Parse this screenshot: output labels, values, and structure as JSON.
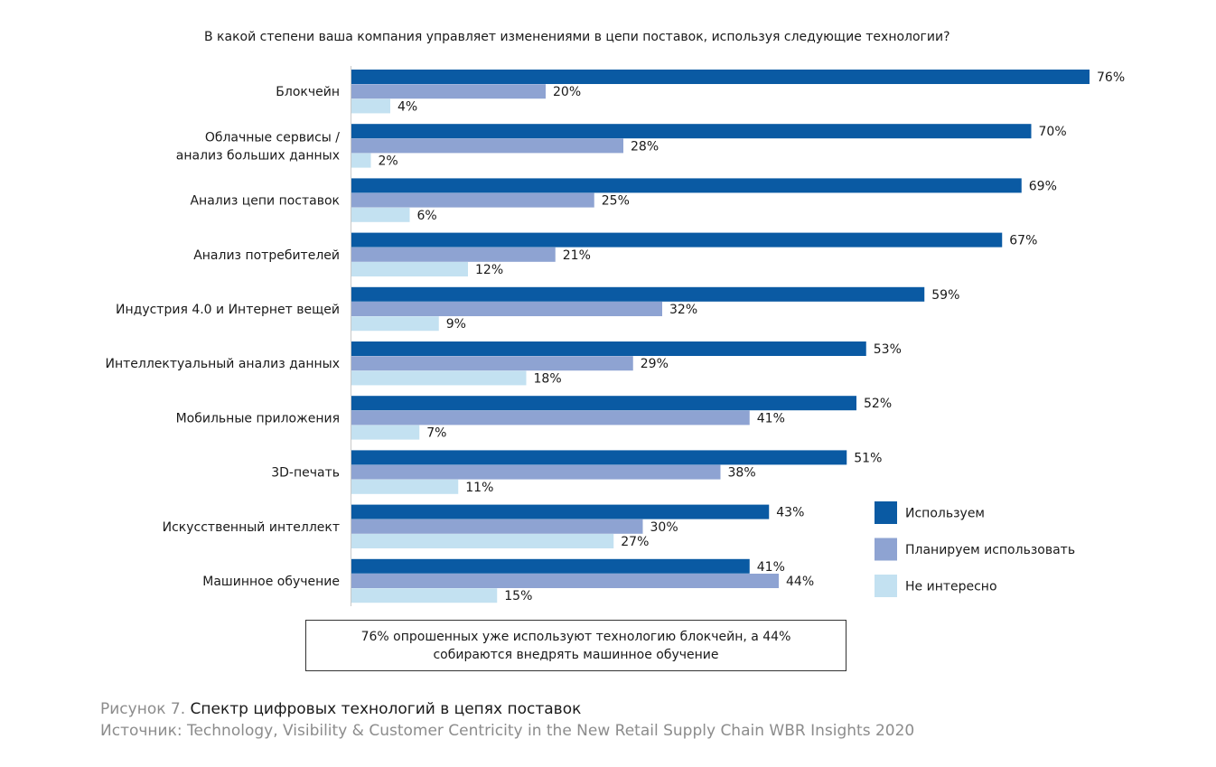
{
  "question": "В какой степени ваша компания управляет изменениями в цепи поставок, используя следующие технологии?",
  "colors": {
    "use": "#0a5aa3",
    "plan": "#8ea3d2",
    "not_interested": "#c3e1f1"
  },
  "chart_data": {
    "type": "bar",
    "orientation": "horizontal",
    "categories": [
      [
        "Блокчейн"
      ],
      [
        "Облачные сервисы /",
        "анализ больших данных"
      ],
      [
        "Анализ цепи поставок"
      ],
      [
        "Анализ потребителей"
      ],
      [
        "Индустрия 4.0 и Интернет вещей"
      ],
      [
        "Интеллектуальный анализ данных"
      ],
      [
        "Мобильные приложения"
      ],
      [
        "3D-печать"
      ],
      [
        "Искусственный интеллект"
      ],
      [
        "Машинное обучение"
      ]
    ],
    "series": [
      {
        "name": "Используем",
        "color": "#0a5aa3",
        "values": [
          76,
          70,
          69,
          67,
          59,
          53,
          52,
          51,
          43,
          41
        ]
      },
      {
        "name": "Планируем использовать",
        "color": "#8ea3d2",
        "values": [
          20,
          28,
          25,
          21,
          32,
          29,
          41,
          38,
          30,
          44
        ]
      },
      {
        "name": "Не интересно",
        "color": "#c3e1f1",
        "values": [
          4,
          2,
          6,
          12,
          9,
          18,
          7,
          11,
          27,
          15
        ]
      }
    ],
    "value_suffix": "%",
    "xlim": [
      0,
      100
    ],
    "grid": false,
    "legend_position": "bottom-right"
  },
  "callout": "76% опрошенных уже используют технологию блокчейн, а 44% собираются внедрять машинное обучение",
  "caption": {
    "prefix": "Рисунок 7.",
    "title": "Спектр цифровых технологий в цепях поставок"
  },
  "source": "Источник: Technology, Visibility & Customer Centricity in the New Retail Supply Chain WBR Insights 2020"
}
